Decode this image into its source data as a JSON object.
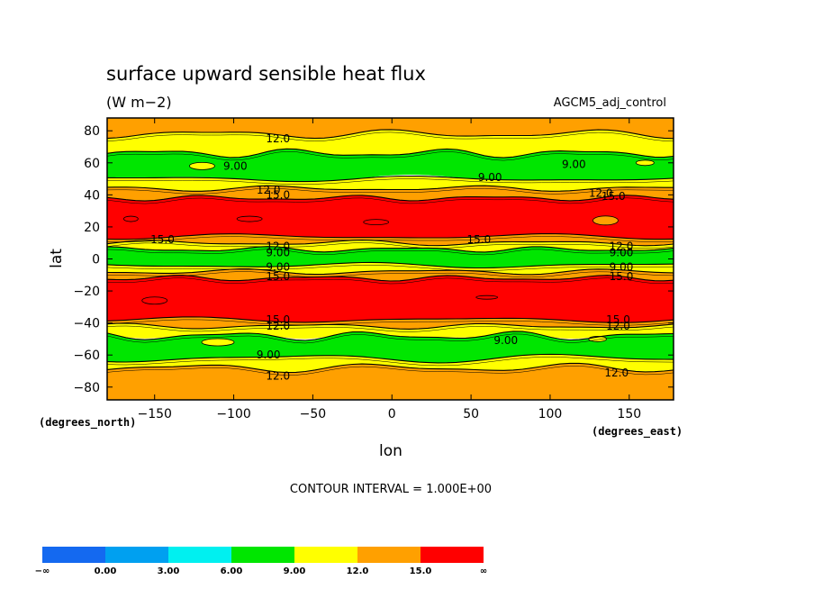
{
  "chart_data": {
    "type": "heatmap",
    "title": "surface upward sensible heat flux",
    "units": "(W m−2)",
    "dataset": "AGCM5_adj_control",
    "xlabel": "lon",
    "ylabel": "lat",
    "x_units": "(degrees_east)",
    "y_units": "(degrees_north)",
    "xlim": [
      -180,
      178
    ],
    "ylim": [
      -88,
      88
    ],
    "x_ticks": [
      -150,
      -100,
      -50,
      0,
      50,
      100,
      150
    ],
    "x_tick_labels": [
      "−150",
      "−100",
      "−50",
      "0",
      "50",
      "100",
      "150"
    ],
    "y_ticks": [
      80,
      60,
      40,
      20,
      0,
      -20,
      -40,
      -60,
      -80
    ],
    "y_tick_labels": [
      "80",
      "60",
      "40",
      "20",
      "0",
      "−20",
      "−40",
      "−60",
      "−80"
    ],
    "contour_interval_text": "CONTOUR INTERVAL = 1.000E+00",
    "levels": [
      0,
      3,
      6,
      9,
      12,
      15
    ],
    "colorbar": {
      "colors": [
        "#1469f0",
        "#00a0f0",
        "#00f0f0",
        "#00e600",
        "#ffff00",
        "#ffa000",
        "#ff0000"
      ],
      "labels": [
        "−∞",
        "0.00",
        "3.00",
        "6.00",
        "9.00",
        "12.0",
        "15.0",
        "∞"
      ]
    },
    "latitude_bands": [
      {
        "lat_from": 88,
        "lat_to": 78,
        "value": 13.5
      },
      {
        "lat_from": 78,
        "lat_to": 66,
        "value": 11.0
      },
      {
        "lat_from": 66,
        "lat_to": 50,
        "value": 8.0
      },
      {
        "lat_from": 50,
        "lat_to": 44,
        "value": 11.0
      },
      {
        "lat_from": 44,
        "lat_to": 38,
        "value": 13.5
      },
      {
        "lat_from": 38,
        "lat_to": 14,
        "value": 17.0
      },
      {
        "lat_from": 14,
        "lat_to": 10,
        "value": 13.5
      },
      {
        "lat_from": 10,
        "lat_to": 6,
        "value": 11.0
      },
      {
        "lat_from": 6,
        "lat_to": -4,
        "value": 8.0
      },
      {
        "lat_from": -4,
        "lat_to": -8,
        "value": 11.0
      },
      {
        "lat_from": -8,
        "lat_to": -12,
        "value": 13.5
      },
      {
        "lat_from": -12,
        "lat_to": -38,
        "value": 17.0
      },
      {
        "lat_from": -38,
        "lat_to": -42,
        "value": 13.5
      },
      {
        "lat_from": -42,
        "lat_to": -48,
        "value": 11.0
      },
      {
        "lat_from": -48,
        "lat_to": -62,
        "value": 8.0
      },
      {
        "lat_from": -62,
        "lat_to": -68,
        "value": 11.0
      },
      {
        "lat_from": -68,
        "lat_to": -88,
        "value": 13.5
      }
    ],
    "contour_labels": [
      {
        "text": "12.0",
        "lon": -72,
        "lat": 75
      },
      {
        "text": "9.00",
        "lon": -99,
        "lat": 58
      },
      {
        "text": "9.00",
        "lon": 62,
        "lat": 51
      },
      {
        "text": "9.00",
        "lon": 115,
        "lat": 59
      },
      {
        "text": "12.0",
        "lon": -78,
        "lat": 43
      },
      {
        "text": "15.0",
        "lon": -72,
        "lat": 40
      },
      {
        "text": "12.0",
        "lon": 132,
        "lat": 41
      },
      {
        "text": "15.0",
        "lon": 140,
        "lat": 39
      },
      {
        "text": "15.0",
        "lon": -145,
        "lat": 12
      },
      {
        "text": "15.0",
        "lon": 55,
        "lat": 12
      },
      {
        "text": "12.0",
        "lon": -72,
        "lat": 8
      },
      {
        "text": "9.00",
        "lon": -72,
        "lat": 4
      },
      {
        "text": "12.0",
        "lon": 145,
        "lat": 8
      },
      {
        "text": "9.00",
        "lon": 145,
        "lat": 4
      },
      {
        "text": "9.00",
        "lon": -72,
        "lat": -5
      },
      {
        "text": "15.0",
        "lon": -72,
        "lat": -11
      },
      {
        "text": "9.00",
        "lon": 145,
        "lat": -5
      },
      {
        "text": "15.0",
        "lon": 145,
        "lat": -11
      },
      {
        "text": "15.0",
        "lon": -72,
        "lat": -38
      },
      {
        "text": "12.0",
        "lon": -72,
        "lat": -42
      },
      {
        "text": "15.0",
        "lon": 143,
        "lat": -38
      },
      {
        "text": "12.0",
        "lon": 143,
        "lat": -42
      },
      {
        "text": "9.00",
        "lon": 72,
        "lat": -51
      },
      {
        "text": "9.00",
        "lon": -78,
        "lat": -60
      },
      {
        "text": "12.0",
        "lon": -72,
        "lat": -73
      },
      {
        "text": "12.0",
        "lon": 142,
        "lat": -71
      }
    ],
    "grid": false,
    "legend": "bottom-left colorbar"
  }
}
